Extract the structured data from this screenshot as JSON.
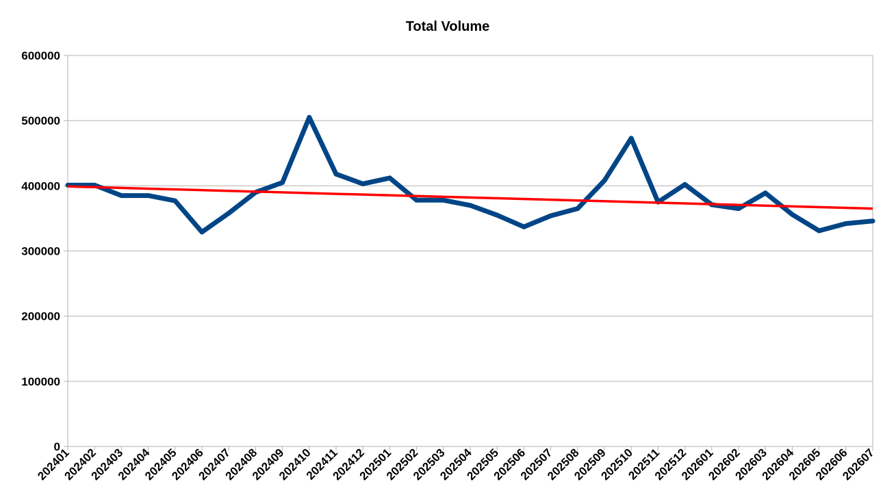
{
  "chart_data": {
    "type": "line",
    "title": "Total Volume",
    "xlabel": "",
    "ylabel": "",
    "ylim": [
      0,
      600000
    ],
    "yticks": [
      "0",
      "100000",
      "200000",
      "300000",
      "400000",
      "500000",
      "600000"
    ],
    "grid": true,
    "legend": "none",
    "categories": [
      "202401",
      "202402",
      "202403",
      "202404",
      "202405",
      "202406",
      "202407",
      "202408",
      "202409",
      "202410",
      "202411",
      "202412",
      "202501",
      "202502",
      "202503",
      "202504",
      "202505",
      "202506",
      "202507",
      "202508",
      "202509",
      "202510",
      "202511",
      "202512",
      "202601",
      "202602",
      "202603",
      "202604",
      "202605",
      "202606",
      "202607"
    ],
    "series": [
      {
        "color": "#004586",
        "values": [
          401000,
          401000,
          385000,
          385000,
          377000,
          329000,
          358000,
          390000,
          405000,
          505000,
          418000,
          403000,
          412000,
          378000,
          378000,
          370000,
          355000,
          337000,
          354000,
          365000,
          408000,
          473000,
          375000,
          402000,
          371000,
          365000,
          389000,
          356000,
          331000,
          342000,
          346000
        ]
      }
    ],
    "trendline": {
      "type": "linear",
      "color": "#ff0000",
      "start": 399000,
      "end": 365000
    }
  }
}
